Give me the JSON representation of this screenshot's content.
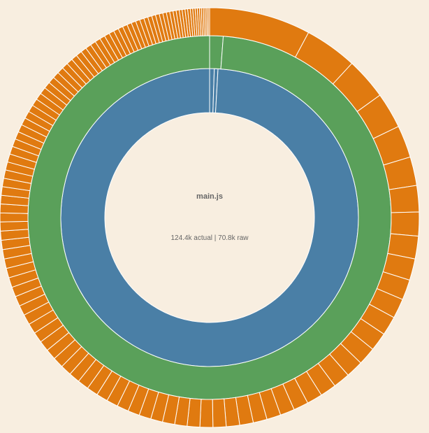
{
  "center": {
    "title": "main.js",
    "size_text": "124.4k actual | 70.8k raw"
  },
  "colors": {
    "background": "#f8eee0",
    "inner_ring": "#4a7fa6",
    "middle_ring": "#5aa05a",
    "outer_ring": "#e07a10",
    "separator": "#ffffff"
  },
  "chart_data": {
    "type": "sunburst",
    "title": "",
    "rings": [
      {
        "name": "inner",
        "color": "#4a7fa6",
        "segments": [
          0.5,
          0.4,
          99.1
        ]
      },
      {
        "name": "middle",
        "color": "#5aa05a",
        "segments": [
          1.2,
          98.8
        ]
      },
      {
        "name": "outer",
        "color": "#e07a10",
        "segments": [
          8.5,
          4.4,
          3.5,
          3.0,
          2.7,
          2.4,
          2.2,
          2.0,
          1.9,
          1.8,
          1.7,
          1.65,
          1.6,
          1.55,
          1.5,
          1.45,
          1.4,
          1.35,
          1.3,
          1.25,
          1.2,
          1.18,
          1.16,
          1.14,
          1.12,
          1.1,
          1.08,
          1.06,
          1.04,
          1.02,
          1.0,
          1.0,
          0.98,
          0.98,
          0.96,
          0.96,
          0.94,
          0.94,
          0.92,
          0.92,
          0.9,
          0.9,
          0.88,
          0.88,
          0.86,
          0.86,
          0.84,
          0.84,
          0.82,
          0.82,
          0.8,
          0.8,
          0.78,
          0.78,
          0.76,
          0.76,
          0.74,
          0.74,
          0.72,
          0.72,
          0.7,
          0.7,
          0.68,
          0.68,
          0.66,
          0.66,
          0.64,
          0.64,
          0.62,
          0.62,
          0.6,
          0.6,
          0.58,
          0.58,
          0.56,
          0.56,
          0.54,
          0.54,
          0.52,
          0.52,
          0.5,
          0.5,
          0.48,
          0.48,
          0.46,
          0.46,
          0.44,
          0.44,
          0.42,
          0.42,
          0.4,
          0.4,
          0.38,
          0.38,
          0.36,
          0.36,
          0.34,
          0.34,
          0.32,
          0.32,
          0.3,
          0.3,
          0.28,
          0.28,
          0.26,
          0.26,
          0.24,
          0.24,
          0.22,
          0.22,
          0.2,
          0.2,
          0.18,
          0.18,
          0.16,
          0.16,
          0.14,
          0.14,
          0.12,
          0.12
        ]
      }
    ]
  }
}
